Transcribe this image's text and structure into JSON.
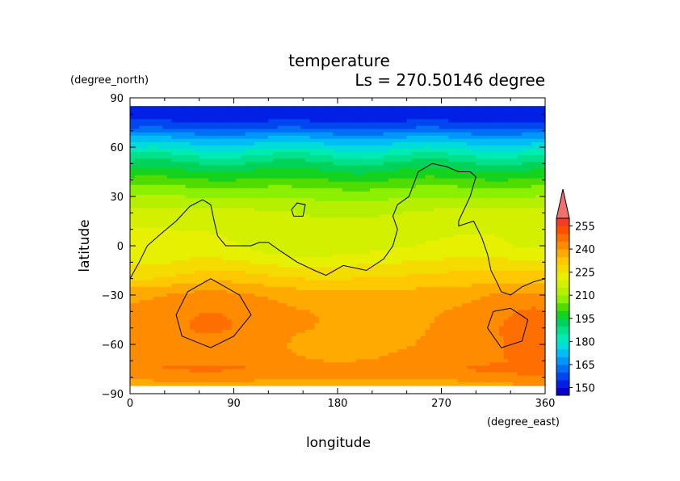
{
  "chart_data": {
    "type": "heatmap",
    "title": "temperature",
    "subtitle": "Ls = 270.50146 degree",
    "xlabel": "longitude",
    "ylabel": "latitude",
    "xunit": "(degree_east)",
    "yunit": "(degree_north)",
    "xlim": [
      0,
      360
    ],
    "ylim": [
      -90,
      90
    ],
    "x_ticks": [
      0,
      90,
      180,
      270,
      360
    ],
    "y_ticks": [
      90,
      60,
      30,
      0,
      -30,
      -60,
      -90
    ],
    "y_tick_labels": [
      "90",
      "60",
      "30",
      "0",
      "−30",
      "−60",
      "−90"
    ],
    "data_lat_range": [
      -85,
      85
    ],
    "colorbar": {
      "levels": [
        145,
        150,
        155,
        160,
        165,
        170,
        175,
        180,
        185,
        190,
        195,
        200,
        205,
        210,
        215,
        220,
        225,
        230,
        235,
        240,
        245,
        250,
        255,
        260
      ],
      "colors": [
        "#0a00cc",
        "#0020e6",
        "#0046f0",
        "#006ef5",
        "#0096fa",
        "#00bef5",
        "#00dcdc",
        "#00ebb4",
        "#00e18c",
        "#00d25a",
        "#14d21e",
        "#50dc00",
        "#8cf000",
        "#b4f000",
        "#d2f000",
        "#e6f000",
        "#f5dc00",
        "#ffc800",
        "#ffaa00",
        "#ff8c00",
        "#ff6e00",
        "#ff5000",
        "#f03c28",
        "#f07070"
      ],
      "tick_labels": [
        "150",
        "165",
        "180",
        "195",
        "210",
        "225",
        "240",
        "255"
      ],
      "overflow_arrow": true
    },
    "zonal_temperature_profile": {
      "lat": [
        85,
        75,
        70,
        65,
        60,
        55,
        50,
        45,
        40,
        35,
        30,
        25,
        20,
        15,
        10,
        5,
        0,
        -5,
        -10,
        -15,
        -20,
        -25,
        -30,
        -40,
        -50,
        -60,
        -70,
        -75,
        -80,
        -85
      ],
      "temp": [
        147,
        150,
        157,
        166,
        173,
        180,
        186,
        191,
        196,
        201,
        205,
        209,
        212,
        214,
        215,
        216,
        217,
        219,
        222,
        225,
        227,
        230,
        233,
        235,
        236,
        236,
        237,
        240,
        236,
        233
      ]
    },
    "anomalies": [
      {
        "lon": 70,
        "lat": -42,
        "dlon": 55,
        "dlat": 26,
        "dT": 5
      },
      {
        "lon": 330,
        "lat": -50,
        "dlon": 35,
        "dlat": 30,
        "dT": 4
      },
      {
        "lon": 190,
        "lat": 5,
        "dlon": 70,
        "dlat": 28,
        "dT": -4
      },
      {
        "lon": 130,
        "lat": -5,
        "dlon": 50,
        "dlat": 15,
        "dT": -3
      },
      {
        "lon": 20,
        "lat": -15,
        "dlon": 40,
        "dlat": 10,
        "dT": -4
      },
      {
        "lon": 350,
        "lat": 0,
        "dlon": 30,
        "dlat": 15,
        "dT": -3
      },
      {
        "lon": 180,
        "lat": -62,
        "dlon": 60,
        "dlat": 14,
        "dT": -3
      },
      {
        "lon": 355,
        "lat": -55,
        "dlon": 20,
        "dlat": 25,
        "dT": 5
      },
      {
        "lon": 230,
        "lat": -48,
        "dlon": 30,
        "dlat": 8,
        "dT": -2
      }
    ],
    "contours": [
      [
        [
          0,
          -20
        ],
        [
          8,
          -10
        ],
        [
          15,
          0
        ],
        [
          28,
          8
        ],
        [
          40,
          15
        ],
        [
          52,
          24
        ],
        [
          63,
          28
        ],
        [
          70,
          25
        ],
        [
          73,
          15
        ],
        [
          76,
          6
        ],
        [
          83,
          0
        ],
        [
          105,
          0
        ],
        [
          112,
          2
        ],
        [
          120,
          2
        ],
        [
          130,
          -3
        ],
        [
          145,
          -10
        ],
        [
          160,
          -15
        ],
        [
          170,
          -18
        ],
        [
          185,
          -12
        ],
        [
          205,
          -15
        ],
        [
          220,
          -8
        ],
        [
          228,
          0
        ],
        [
          232,
          10
        ],
        [
          228,
          18
        ],
        [
          232,
          25
        ],
        [
          242,
          30
        ],
        [
          250,
          45
        ],
        [
          262,
          50
        ],
        [
          275,
          48
        ],
        [
          285,
          45
        ],
        [
          295,
          45
        ],
        [
          300,
          42
        ],
        [
          295,
          30
        ],
        [
          285,
          15
        ],
        [
          285,
          12
        ],
        [
          298,
          15
        ],
        [
          305,
          5
        ],
        [
          310,
          -5
        ],
        [
          313,
          -15
        ],
        [
          318,
          -22
        ],
        [
          322,
          -28
        ],
        [
          330,
          -30
        ],
        [
          340,
          -25
        ],
        [
          350,
          -22
        ],
        [
          360,
          -20
        ]
      ],
      [
        [
          140,
          22
        ],
        [
          145,
          26
        ],
        [
          152,
          25
        ],
        [
          150,
          18
        ],
        [
          142,
          18
        ],
        [
          140,
          22
        ]
      ],
      [
        [
          70,
          -20
        ],
        [
          95,
          -30
        ],
        [
          105,
          -42
        ],
        [
          90,
          -55
        ],
        [
          70,
          -62
        ],
        [
          45,
          -55
        ],
        [
          40,
          -42
        ],
        [
          50,
          -28
        ],
        [
          70,
          -20
        ]
      ],
      [
        [
          330,
          -38
        ],
        [
          345,
          -45
        ],
        [
          340,
          -58
        ],
        [
          322,
          -62
        ],
        [
          310,
          -50
        ],
        [
          315,
          -40
        ],
        [
          330,
          -38
        ]
      ]
    ]
  }
}
